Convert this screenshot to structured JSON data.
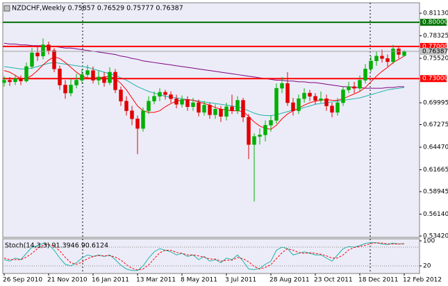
{
  "chart_data": [
    {
      "type": "candlestick",
      "title": "NZDCHF,Weekly  0.75857 0.76529 0.75777 0.76387",
      "categories": [
        "26 Sep 2010",
        null,
        null,
        null,
        null,
        null,
        null,
        null,
        "21 Nov 2010",
        null,
        null,
        null,
        null,
        null,
        null,
        null,
        "16 Jan 2011",
        null,
        null,
        null,
        null,
        null,
        null,
        null,
        "13 Mar 2011",
        null,
        null,
        null,
        null,
        null,
        null,
        null,
        "8 May 2011",
        null,
        null,
        null,
        null,
        null,
        null,
        null,
        "3 Jul 2011",
        null,
        null,
        null,
        null,
        null,
        null,
        null,
        "28 Aug 2011",
        null,
        null,
        null,
        null,
        null,
        null,
        null,
        "23 Oct 2011",
        null,
        null,
        null,
        null,
        null,
        null,
        null,
        "18 Dec 2011",
        null,
        null,
        null,
        null,
        null,
        null,
        null,
        "12 Feb 2012"
      ],
      "open": [
        0.725,
        0.728,
        0.726,
        0.73,
        0.727,
        0.745,
        0.762,
        0.758,
        0.772,
        0.765,
        0.742,
        0.722,
        0.712,
        0.722,
        0.728,
        0.735,
        0.74,
        0.728,
        0.732,
        0.725,
        0.738,
        0.716,
        0.702,
        0.69,
        0.68,
        0.668,
        0.69,
        0.702,
        0.708,
        0.713,
        0.71,
        0.705,
        0.698,
        0.704,
        0.695,
        0.7,
        0.688,
        0.697,
        0.685,
        0.692,
        0.683,
        0.695,
        0.69,
        0.703,
        0.682,
        0.648,
        0.658,
        0.66,
        0.672,
        0.678,
        0.718,
        0.724,
        0.7,
        0.69,
        0.705,
        0.712,
        0.708,
        0.703,
        0.705,
        0.696,
        0.688,
        0.7,
        0.716,
        0.72,
        0.718,
        0.728,
        0.742,
        0.752,
        0.758,
        0.755,
        0.751,
        0.767,
        0.75857
      ],
      "high": [
        0.733,
        0.732,
        0.735,
        0.734,
        0.75,
        0.768,
        0.77,
        0.78,
        0.776,
        0.768,
        0.746,
        0.728,
        0.73,
        0.736,
        0.742,
        0.747,
        0.745,
        0.74,
        0.738,
        0.744,
        0.742,
        0.72,
        0.708,
        0.696,
        0.684,
        0.694,
        0.708,
        0.714,
        0.718,
        0.716,
        0.714,
        0.71,
        0.709,
        0.708,
        0.706,
        0.704,
        0.702,
        0.7,
        0.698,
        0.696,
        0.7,
        0.71,
        0.708,
        0.706,
        0.686,
        0.662,
        0.668,
        0.678,
        0.684,
        0.724,
        0.732,
        0.738,
        0.706,
        0.71,
        0.718,
        0.716,
        0.712,
        0.714,
        0.71,
        0.7,
        0.706,
        0.72,
        0.726,
        0.726,
        0.734,
        0.748,
        0.758,
        0.764,
        0.766,
        0.76,
        0.772,
        0.77,
        0.76529
      ],
      "low": [
        0.72,
        0.721,
        0.722,
        0.722,
        0.725,
        0.742,
        0.752,
        0.754,
        0.76,
        0.738,
        0.716,
        0.705,
        0.708,
        0.718,
        0.724,
        0.73,
        0.724,
        0.722,
        0.72,
        0.722,
        0.712,
        0.696,
        0.684,
        0.672,
        0.636,
        0.664,
        0.686,
        0.698,
        0.702,
        0.704,
        0.7,
        0.693,
        0.694,
        0.69,
        0.69,
        0.683,
        0.684,
        0.68,
        0.68,
        0.676,
        0.678,
        0.686,
        0.686,
        0.676,
        0.63,
        0.577,
        0.648,
        0.652,
        0.664,
        0.674,
        0.712,
        0.696,
        0.684,
        0.686,
        0.7,
        0.702,
        0.698,
        0.7,
        0.69,
        0.682,
        0.684,
        0.696,
        0.712,
        0.712,
        0.714,
        0.724,
        0.738,
        0.746,
        0.75,
        0.745,
        0.748,
        0.755,
        0.75777
      ],
      "close": [
        0.728,
        0.726,
        0.73,
        0.727,
        0.745,
        0.762,
        0.758,
        0.772,
        0.765,
        0.742,
        0.722,
        0.712,
        0.722,
        0.728,
        0.735,
        0.74,
        0.728,
        0.732,
        0.725,
        0.738,
        0.716,
        0.702,
        0.69,
        0.68,
        0.668,
        0.69,
        0.702,
        0.708,
        0.713,
        0.71,
        0.705,
        0.698,
        0.704,
        0.695,
        0.7,
        0.688,
        0.697,
        0.685,
        0.692,
        0.683,
        0.695,
        0.69,
        0.703,
        0.682,
        0.648,
        0.658,
        0.66,
        0.672,
        0.678,
        0.718,
        0.724,
        0.7,
        0.69,
        0.705,
        0.712,
        0.708,
        0.703,
        0.705,
        0.696,
        0.688,
        0.7,
        0.716,
        0.72,
        0.718,
        0.728,
        0.742,
        0.752,
        0.758,
        0.755,
        0.751,
        0.767,
        0.76,
        0.76387
      ],
      "up_color": "#00b000",
      "down_color": "#e00000",
      "series": [
        {
          "color": "#800080",
          "values": [
            0.774,
            0.773,
            0.773,
            0.772,
            0.772,
            0.771,
            0.771,
            0.771,
            0.77,
            0.77,
            0.769,
            0.768,
            0.768,
            0.767,
            0.766,
            0.765,
            0.764,
            0.763,
            0.762,
            0.761,
            0.76,
            0.758,
            0.757,
            0.755,
            0.754,
            0.752,
            0.751,
            0.75,
            0.749,
            0.748,
            0.747,
            0.746,
            0.745,
            0.744,
            0.743,
            0.742,
            0.741,
            0.74,
            0.739,
            0.738,
            0.737,
            0.736,
            0.735,
            0.734,
            0.733,
            0.732,
            0.731,
            0.73,
            0.729,
            0.728,
            0.728,
            0.727,
            0.727,
            0.726,
            0.726,
            0.725,
            0.725,
            0.724,
            0.723,
            0.722,
            0.721,
            0.72,
            0.72,
            0.719,
            0.719,
            0.718,
            0.718,
            0.718,
            0.718,
            0.719,
            0.719,
            0.72,
            0.72
          ]
        },
        {
          "color": "#20b2aa",
          "values": [
            0.745,
            0.744,
            0.743,
            0.742,
            0.742,
            0.743,
            0.745,
            0.747,
            0.749,
            0.75,
            0.749,
            0.748,
            0.747,
            0.746,
            0.745,
            0.744,
            0.742,
            0.74,
            0.738,
            0.736,
            0.734,
            0.731,
            0.728,
            0.724,
            0.72,
            0.717,
            0.714,
            0.712,
            0.71,
            0.708,
            0.707,
            0.706,
            0.705,
            0.704,
            0.703,
            0.702,
            0.701,
            0.7,
            0.699,
            0.698,
            0.697,
            0.696,
            0.695,
            0.693,
            0.69,
            0.687,
            0.685,
            0.684,
            0.684,
            0.685,
            0.687,
            0.689,
            0.691,
            0.692,
            0.694,
            0.696,
            0.698,
            0.699,
            0.7,
            0.701,
            0.702,
            0.703,
            0.704,
            0.705,
            0.706,
            0.708,
            0.71,
            0.712,
            0.714,
            0.716,
            0.717,
            0.718,
            0.719
          ]
        },
        {
          "color": "#ff0000",
          "values": [
            0.74,
            0.738,
            0.734,
            0.73,
            0.73,
            0.734,
            0.74,
            0.747,
            0.753,
            0.757,
            0.755,
            0.75,
            0.744,
            0.738,
            0.733,
            0.731,
            0.731,
            0.731,
            0.732,
            0.733,
            0.73,
            0.724,
            0.716,
            0.706,
            0.696,
            0.69,
            0.688,
            0.688,
            0.69,
            0.695,
            0.699,
            0.702,
            0.703,
            0.704,
            0.703,
            0.701,
            0.699,
            0.697,
            0.694,
            0.692,
            0.691,
            0.69,
            0.69,
            0.689,
            0.683,
            0.676,
            0.671,
            0.668,
            0.667,
            0.672,
            0.68,
            0.686,
            0.69,
            0.693,
            0.697,
            0.7,
            0.702,
            0.703,
            0.704,
            0.703,
            0.703,
            0.705,
            0.708,
            0.711,
            0.714,
            0.719,
            0.726,
            0.733,
            0.739,
            0.744,
            0.75,
            0.754,
            0.758
          ]
        }
      ],
      "hlines": [
        {
          "value": 0.8,
          "label": "0.80000",
          "color": "#007000"
        },
        {
          "value": 0.77,
          "label": "0.77000",
          "color": "#ff0000"
        },
        {
          "value": 0.73,
          "label": "0.73000",
          "color": "#ff0000"
        }
      ],
      "ylim": [
        0.5325,
        0.8243
      ],
      "yticks": [
        {
          "value": 0.8113,
          "label": "0.81130"
        },
        {
          "value": 0.78325,
          "label": "0.78325"
        },
        {
          "value": 0.7552,
          "label": "0.75520"
        },
        {
          "value": 0.69995,
          "label": "0.69995"
        },
        {
          "value": 0.67275,
          "label": "0.67275"
        },
        {
          "value": 0.6447,
          "label": "0.64470"
        },
        {
          "value": 0.61665,
          "label": "0.61665"
        },
        {
          "value": 0.58945,
          "label": "0.58945"
        },
        {
          "value": 0.5614,
          "label": "0.56140"
        },
        {
          "value": 0.5342,
          "label": "0.53420"
        }
      ]
    },
    {
      "type": "line",
      "title": "Stoch(14,3,3) 91.3946 90.6124",
      "series": [
        {
          "color": "#20b2aa",
          "dashed": false,
          "values": [
            40,
            35,
            45,
            40,
            60,
            80,
            85,
            92,
            88,
            70,
            45,
            25,
            20,
            30,
            45,
            55,
            50,
            55,
            50,
            55,
            40,
            22,
            10,
            5,
            5,
            20,
            45,
            65,
            75,
            70,
            65,
            55,
            60,
            50,
            55,
            40,
            50,
            35,
            40,
            30,
            45,
            40,
            55,
            35,
            10,
            8,
            12,
            25,
            35,
            70,
            80,
            75,
            55,
            60,
            65,
            60,
            55,
            55,
            45,
            35,
            55,
            75,
            82,
            80,
            85,
            92,
            95,
            94,
            90,
            88,
            93,
            90,
            91.3946
          ]
        },
        {
          "color": "#ff0000",
          "dashed": true,
          "values": [
            45,
            40,
            40,
            40,
            48,
            60,
            75,
            86,
            88,
            83,
            68,
            47,
            30,
            25,
            32,
            43,
            50,
            53,
            52,
            53,
            48,
            39,
            24,
            12,
            7,
            10,
            23,
            43,
            62,
            70,
            70,
            63,
            60,
            55,
            55,
            52,
            48,
            42,
            42,
            35,
            38,
            38,
            47,
            43,
            33,
            18,
            10,
            15,
            24,
            43,
            62,
            75,
            70,
            63,
            60,
            62,
            60,
            57,
            52,
            45,
            45,
            55,
            71,
            79,
            82,
            86,
            91,
            94,
            93,
            91,
            90,
            90,
            90.6124
          ]
        }
      ],
      "levels": [
        80,
        20
      ],
      "ylim": [
        0,
        100
      ],
      "yticks": [
        100,
        20
      ]
    }
  ]
}
